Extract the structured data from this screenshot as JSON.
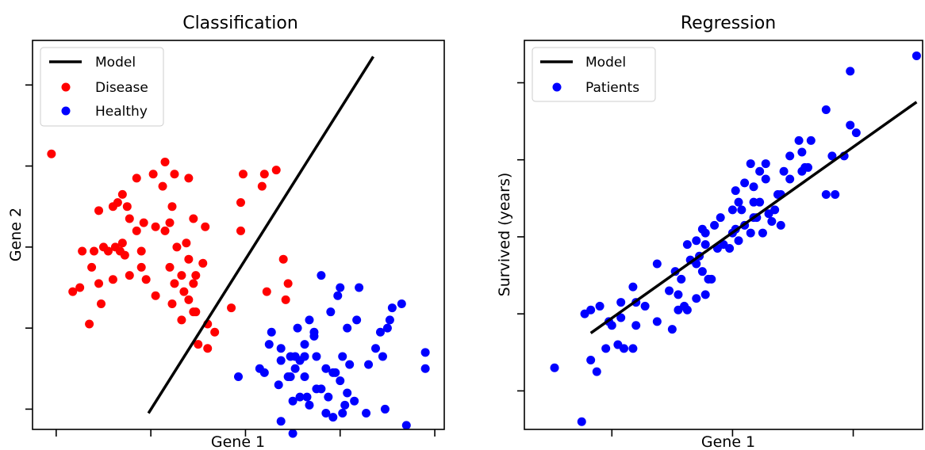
{
  "chart_data": [
    {
      "type": "scatter",
      "title": "Classification",
      "xlabel": "Gene 1",
      "ylabel": "Gene 2",
      "xlim": [
        -4.5,
        4.2
      ],
      "ylim": [
        -1.25,
        3.55
      ],
      "xticks": [
        -4,
        -2,
        0,
        2,
        4
      ],
      "yticks": [
        -1,
        0,
        1,
        2,
        3
      ],
      "show_tick_labels": false,
      "grid": false,
      "legend": {
        "placement": "top-left",
        "entries": [
          {
            "label": "Model",
            "kind": "line",
            "color": "#000000"
          },
          {
            "label": "Disease",
            "kind": "marker",
            "color": "#ff0000"
          },
          {
            "label": "Healthy",
            "kind": "marker",
            "color": "#0000ff"
          }
        ]
      },
      "lines": [
        {
          "name": "Model",
          "color": "#000000",
          "points": [
            [
              -2.05,
              -1.05
            ],
            [
              2.7,
              3.35
            ]
          ]
        }
      ],
      "series": [
        {
          "name": "Disease",
          "color": "#ff0000",
          "points": [
            [
              -4.1,
              2.15
            ],
            [
              -2.3,
              1.85
            ],
            [
              -2.6,
              1.65
            ],
            [
              -2.7,
              1.55
            ],
            [
              -2.8,
              1.5
            ],
            [
              -2.5,
              1.5
            ],
            [
              -3.1,
              1.45
            ],
            [
              -2.45,
              1.35
            ],
            [
              -2.15,
              1.3
            ],
            [
              -2.3,
              1.2
            ],
            [
              -2.6,
              1.05
            ],
            [
              -2.75,
              1.0
            ],
            [
              -3.0,
              1.0
            ],
            [
              -2.9,
              0.95
            ],
            [
              -2.65,
              0.95
            ],
            [
              -2.55,
              0.9
            ],
            [
              -3.2,
              0.95
            ],
            [
              -3.45,
              0.95
            ],
            [
              -2.2,
              0.95
            ],
            [
              -1.7,
              2.05
            ],
            [
              -1.95,
              1.9
            ],
            [
              -1.75,
              1.75
            ],
            [
              -1.5,
              1.9
            ],
            [
              -1.2,
              1.85
            ],
            [
              -1.55,
              1.5
            ],
            [
              -1.6,
              1.3
            ],
            [
              -1.9,
              1.25
            ],
            [
              -1.7,
              1.2
            ],
            [
              -1.25,
              1.05
            ],
            [
              -1.1,
              1.35
            ],
            [
              -0.85,
              1.25
            ],
            [
              -1.45,
              1.0
            ],
            [
              -1.2,
              0.85
            ],
            [
              -1.6,
              0.75
            ],
            [
              -2.2,
              0.75
            ],
            [
              -0.9,
              0.8
            ],
            [
              -1.5,
              0.55
            ],
            [
              -1.3,
              0.45
            ],
            [
              -1.1,
              0.55
            ],
            [
              -1.2,
              0.35
            ],
            [
              -1.1,
              0.2
            ],
            [
              -1.35,
              0.1
            ],
            [
              -1.55,
              0.3
            ],
            [
              -1.9,
              0.4
            ],
            [
              -2.1,
              0.6
            ],
            [
              -2.45,
              0.65
            ],
            [
              -2.8,
              0.6
            ],
            [
              -3.1,
              0.55
            ],
            [
              -3.5,
              0.5
            ],
            [
              -3.65,
              0.45
            ],
            [
              -3.3,
              0.05
            ],
            [
              -3.05,
              0.3
            ],
            [
              -3.25,
              0.75
            ],
            [
              -1.05,
              0.65
            ],
            [
              -1.35,
              0.65
            ],
            [
              -1.05,
              0.2
            ],
            [
              -0.8,
              0.05
            ],
            [
              -0.8,
              -0.25
            ],
            [
              -1.0,
              -0.2
            ],
            [
              -0.65,
              -0.05
            ],
            [
              -0.3,
              0.25
            ],
            [
              -0.1,
              1.2
            ],
            [
              -0.1,
              1.55
            ],
            [
              -0.05,
              1.9
            ],
            [
              0.35,
              1.75
            ],
            [
              0.4,
              1.9
            ],
            [
              0.65,
              1.95
            ],
            [
              0.8,
              0.85
            ],
            [
              0.9,
              0.55
            ],
            [
              0.85,
              0.35
            ],
            [
              0.45,
              0.45
            ]
          ]
        },
        {
          "name": "Healthy",
          "color": "#0000ff",
          "points": [
            [
              1.6,
              0.65
            ],
            [
              2.0,
              0.5
            ],
            [
              2.4,
              0.5
            ],
            [
              3.0,
              0.0
            ],
            [
              3.05,
              0.1
            ],
            [
              3.1,
              0.25
            ],
            [
              3.3,
              0.3
            ],
            [
              1.25,
              -0.2
            ],
            [
              1.45,
              -0.1
            ],
            [
              1.8,
              0.2
            ],
            [
              1.95,
              0.4
            ],
            [
              0.75,
              -0.25
            ],
            [
              0.75,
              -0.4
            ],
            [
              0.95,
              -0.35
            ],
            [
              0.95,
              -0.6
            ],
            [
              1.05,
              -0.5
            ],
            [
              0.7,
              -0.7
            ],
            [
              1.15,
              -0.85
            ],
            [
              1.0,
              -0.9
            ],
            [
              0.75,
              -1.15
            ],
            [
              1.0,
              -1.3
            ],
            [
              1.35,
              -0.95
            ],
            [
              1.6,
              -0.75
            ],
            [
              1.75,
              -0.85
            ],
            [
              2.15,
              -0.8
            ],
            [
              2.1,
              -0.95
            ],
            [
              2.3,
              -0.9
            ],
            [
              2.55,
              -1.05
            ],
            [
              2.95,
              -1.0
            ],
            [
              3.4,
              -1.2
            ],
            [
              3.8,
              -0.5
            ],
            [
              3.8,
              -0.3
            ],
            [
              1.85,
              -0.55
            ],
            [
              1.7,
              -0.5
            ],
            [
              2.05,
              -0.35
            ],
            [
              2.2,
              -0.45
            ],
            [
              2.0,
              -0.65
            ],
            [
              1.9,
              -0.55
            ],
            [
              1.5,
              -0.35
            ],
            [
              1.25,
              -0.35
            ],
            [
              1.05,
              -0.35
            ],
            [
              2.6,
              -0.45
            ],
            [
              2.9,
              -0.35
            ],
            [
              0.3,
              -0.5
            ],
            [
              0.4,
              -0.55
            ],
            [
              -0.15,
              -0.6
            ],
            [
              0.5,
              -0.2
            ],
            [
              0.55,
              -0.05
            ],
            [
              1.1,
              0.0
            ],
            [
              1.35,
              0.1
            ],
            [
              1.45,
              -0.05
            ],
            [
              2.15,
              0.0
            ],
            [
              2.35,
              0.1
            ],
            [
              2.75,
              -0.25
            ],
            [
              2.85,
              -0.05
            ],
            [
              1.7,
              -1.05
            ],
            [
              1.85,
              -1.1
            ],
            [
              2.05,
              -1.05
            ],
            [
              0.9,
              -0.6
            ],
            [
              1.15,
              -0.4
            ],
            [
              1.25,
              -0.6
            ],
            [
              1.5,
              -0.75
            ],
            [
              1.3,
              -0.85
            ]
          ]
        }
      ]
    },
    {
      "type": "scatter",
      "title": "Regression",
      "xlabel": "Gene 1",
      "ylabel": "Survived (years)",
      "xlim": [
        -3.45,
        3.15
      ],
      "ylim": [
        -2.5,
        2.55
      ],
      "xticks": [
        -2,
        0,
        2
      ],
      "yticks": [
        -2,
        -1,
        0,
        1,
        2
      ],
      "show_tick_labels": false,
      "grid": false,
      "legend": {
        "placement": "top-left",
        "entries": [
          {
            "label": "Model",
            "kind": "line",
            "color": "#000000"
          },
          {
            "label": "Patients",
            "kind": "marker",
            "color": "#0000ff"
          }
        ]
      },
      "lines": [
        {
          "name": "Model",
          "color": "#000000",
          "points": [
            [
              -2.35,
              -1.25
            ],
            [
              3.05,
              1.75
            ]
          ]
        }
      ],
      "series": [
        {
          "name": "Patients",
          "color": "#0000ff",
          "points": [
            [
              3.05,
              2.35
            ],
            [
              1.95,
              2.15
            ],
            [
              1.95,
              1.45
            ],
            [
              2.05,
              1.35
            ],
            [
              1.55,
              1.65
            ],
            [
              1.85,
              1.05
            ],
            [
              1.65,
              1.05
            ],
            [
              1.3,
              1.25
            ],
            [
              1.1,
              1.25
            ],
            [
              1.15,
              1.1
            ],
            [
              0.95,
              1.05
            ],
            [
              1.2,
              0.9
            ],
            [
              0.55,
              0.95
            ],
            [
              0.85,
              0.85
            ],
            [
              1.15,
              0.85
            ],
            [
              0.95,
              0.75
            ],
            [
              0.8,
              0.55
            ],
            [
              0.45,
              0.85
            ],
            [
              0.3,
              0.95
            ],
            [
              0.55,
              0.75
            ],
            [
              0.35,
              0.65
            ],
            [
              0.2,
              0.7
            ],
            [
              1.25,
              0.9
            ],
            [
              1.55,
              0.55
            ],
            [
              1.7,
              0.55
            ],
            [
              0.6,
              0.3
            ],
            [
              0.7,
              0.35
            ],
            [
              0.65,
              0.2
            ],
            [
              0.8,
              0.15
            ],
            [
              0.5,
              0.05
            ],
            [
              0.35,
              0.25
            ],
            [
              0.35,
              0.45
            ],
            [
              0.1,
              0.45
            ],
            [
              0.05,
              0.6
            ],
            [
              0.0,
              0.35
            ],
            [
              0.15,
              0.35
            ],
            [
              0.05,
              0.1
            ],
            [
              0.2,
              0.15
            ],
            [
              0.4,
              0.25
            ],
            [
              0.45,
              0.45
            ],
            [
              0.3,
              0.05
            ],
            [
              0.0,
              0.05
            ],
            [
              -0.2,
              0.25
            ],
            [
              -0.3,
              0.15
            ],
            [
              -0.15,
              -0.1
            ],
            [
              -0.45,
              0.05
            ],
            [
              -0.45,
              -0.1
            ],
            [
              -0.25,
              -0.15
            ],
            [
              -0.05,
              -0.15
            ],
            [
              0.1,
              -0.05
            ],
            [
              -0.5,
              0.1
            ],
            [
              -0.6,
              -0.05
            ],
            [
              -0.75,
              -0.1
            ],
            [
              -0.55,
              -0.25
            ],
            [
              -0.6,
              -0.35
            ],
            [
              -0.7,
              -0.3
            ],
            [
              -0.5,
              -0.45
            ],
            [
              -0.4,
              -0.55
            ],
            [
              -0.45,
              -0.75
            ],
            [
              -0.6,
              -0.8
            ],
            [
              -0.9,
              -0.75
            ],
            [
              -0.85,
              -0.55
            ],
            [
              -1.05,
              -0.7
            ],
            [
              -0.75,
              -0.95
            ],
            [
              -0.8,
              -0.9
            ],
            [
              -0.9,
              -0.95
            ],
            [
              -1.0,
              -1.2
            ],
            [
              -1.25,
              -0.35
            ],
            [
              -0.95,
              -0.45
            ],
            [
              -1.45,
              -0.9
            ],
            [
              -1.65,
              -0.65
            ],
            [
              -1.6,
              -0.85
            ],
            [
              -1.85,
              -0.85
            ],
            [
              -1.85,
              -1.05
            ],
            [
              -2.0,
              -1.15
            ],
            [
              -2.05,
              -1.1
            ],
            [
              -2.2,
              -0.9
            ],
            [
              -2.35,
              -0.95
            ],
            [
              -1.9,
              -1.4
            ],
            [
              -2.45,
              -1.0
            ],
            [
              -1.65,
              -1.45
            ],
            [
              -1.8,
              -1.45
            ],
            [
              -1.6,
              -1.15
            ],
            [
              -1.25,
              -1.1
            ],
            [
              -2.1,
              -1.45
            ],
            [
              -2.35,
              -1.6
            ],
            [
              -2.25,
              -1.75
            ],
            [
              -2.95,
              -1.7
            ],
            [
              -2.5,
              -2.4
            ],
            [
              -0.35,
              -0.55
            ],
            [
              0.75,
              0.55
            ]
          ]
        }
      ]
    }
  ]
}
